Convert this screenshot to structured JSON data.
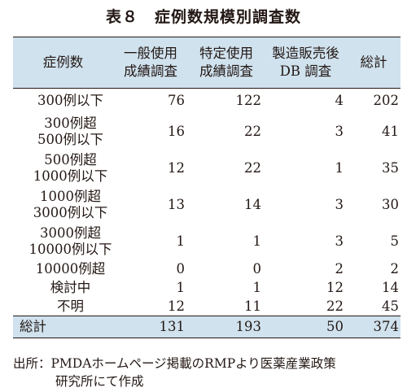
{
  "title": "表８　症例数規模別調査数",
  "table": {
    "headers": [
      {
        "lines": [
          "症例数"
        ]
      },
      {
        "lines": [
          "一般使用",
          "成績調査"
        ]
      },
      {
        "lines": [
          "特定使用",
          "成績調査"
        ]
      },
      {
        "lines": [
          "製造販売後",
          "DB 調査"
        ]
      },
      {
        "lines": [
          "総計"
        ]
      }
    ],
    "rows": [
      {
        "label": [
          "300例以下"
        ],
        "values": [
          "76",
          "122",
          "4",
          "202"
        ]
      },
      {
        "label": [
          "300例超",
          "500例以下"
        ],
        "values": [
          "16",
          "22",
          "3",
          "41"
        ]
      },
      {
        "label": [
          "500例超",
          "1000例以下"
        ],
        "values": [
          "12",
          "22",
          "1",
          "35"
        ]
      },
      {
        "label": [
          "1000例超",
          "3000例以下"
        ],
        "values": [
          "13",
          "14",
          "3",
          "30"
        ]
      },
      {
        "label": [
          "3000例超",
          "10000例以下"
        ],
        "values": [
          "1",
          "1",
          "3",
          "5"
        ]
      },
      {
        "label": [
          "10000例超"
        ],
        "values": [
          "0",
          "0",
          "2",
          "2"
        ]
      },
      {
        "label": [
          "検討中"
        ],
        "values": [
          "1",
          "1",
          "12",
          "14"
        ]
      },
      {
        "label": [
          "不明"
        ],
        "values": [
          "12",
          "11",
          "22",
          "45"
        ]
      }
    ],
    "total": {
      "label": "総計",
      "values": [
        "131",
        "193",
        "50",
        "374"
      ]
    }
  },
  "source": {
    "line1": "出所：PMDAホームページ掲載のRMPより医薬産業政策",
    "line2": "研究所にて作成"
  }
}
